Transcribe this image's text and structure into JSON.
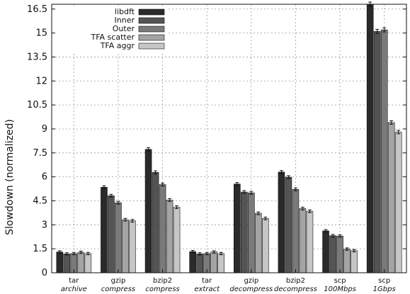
{
  "chart_data": {
    "type": "bar",
    "ylabel": "Slowdown (normalized)",
    "ylim": [
      0,
      16.8
    ],
    "yticks": [
      "0",
      "1.5",
      "3",
      "4.5",
      "6",
      "7.5",
      "9",
      "10.5",
      "12",
      "13.5",
      "15",
      "16.5"
    ],
    "grid": true,
    "legend_position": "top-left",
    "categories": [
      {
        "line1": "tar",
        "line2": "archive"
      },
      {
        "line1": "gzip",
        "line2": "compress"
      },
      {
        "line1": "bzip2",
        "line2": "compress"
      },
      {
        "line1": "tar",
        "line2": "extract"
      },
      {
        "line1": "gzip",
        "line2": "decompress"
      },
      {
        "line1": "bzip2",
        "line2": "decompress"
      },
      {
        "line1": "scp",
        "line2": "100Mbps"
      },
      {
        "line1": "scp",
        "line2": "1Gbps"
      }
    ],
    "series": [
      {
        "name": "libdft",
        "color": "#2a2a2a",
        "values": [
          1.3,
          5.35,
          7.72,
          1.32,
          5.55,
          6.3,
          2.62,
          16.8
        ]
      },
      {
        "name": "Inner",
        "color": "#545454",
        "values": [
          1.18,
          4.82,
          6.28,
          1.18,
          5.05,
          5.98,
          2.32,
          15.1
        ]
      },
      {
        "name": "Outer",
        "color": "#7a7a7a",
        "values": [
          1.2,
          4.38,
          5.52,
          1.2,
          5.0,
          5.22,
          2.3,
          15.2
        ]
      },
      {
        "name": "TFA scatter",
        "color": "#a4a4a4",
        "values": [
          1.28,
          3.32,
          4.55,
          1.3,
          3.72,
          4.02,
          1.48,
          9.4
        ]
      },
      {
        "name": "TFA aggr",
        "color": "#c6c6c6",
        "values": [
          1.2,
          3.25,
          4.1,
          1.2,
          3.4,
          3.85,
          1.38,
          8.8
        ]
      }
    ]
  }
}
